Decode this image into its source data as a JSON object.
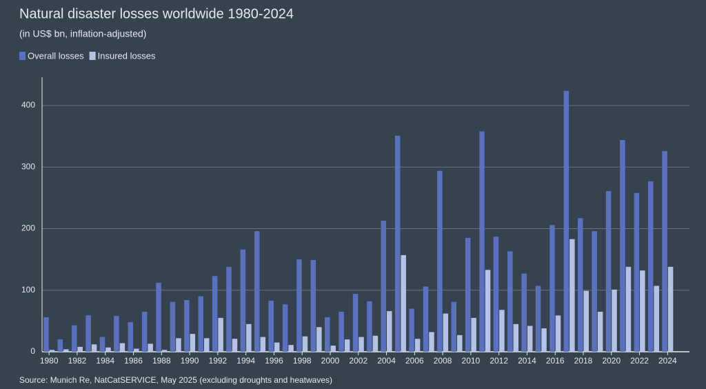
{
  "chart_data": {
    "type": "bar",
    "title": "Natural disaster losses worldwide 1980-2024",
    "subtitle": "(in US$ bn, inflation-adjusted)",
    "source": "Source: Munich Re, NatCatSERVICE, May 2025 (excluding droughts and heatwaves)",
    "categories": [
      "1980",
      null,
      "1982",
      null,
      "1984",
      null,
      "1986",
      null,
      "1988",
      null,
      "1990",
      null,
      "1992",
      null,
      "1994",
      null,
      "1996",
      null,
      "1998",
      null,
      "2000",
      null,
      "2002",
      null,
      "2004",
      null,
      "2006",
      null,
      "2008",
      null,
      "2010",
      null,
      "2012",
      null,
      "2014",
      null,
      "2016",
      null,
      "2018",
      null,
      "2020",
      null,
      "2022",
      null,
      "2024"
    ],
    "series": [
      {
        "name": "Overall losses",
        "color": "#5a71bf",
        "values": [
          56,
          20,
          43,
          59,
          24,
          58,
          48,
          65,
          112,
          81,
          84,
          90,
          123,
          138,
          166,
          196,
          83,
          77,
          150,
          149,
          56,
          65,
          94,
          82,
          213,
          351,
          70,
          106,
          294,
          81,
          185,
          358,
          187,
          163,
          127,
          107,
          206,
          424,
          217,
          196,
          261,
          344,
          258,
          277,
          326
        ]
      },
      {
        "name": "Insured losses",
        "color": "#b4c2e6",
        "values": [
          3,
          4,
          8,
          12,
          7,
          14,
          5,
          13,
          3,
          22,
          29,
          22,
          55,
          21,
          45,
          24,
          15,
          11,
          25,
          40,
          10,
          20,
          24,
          26,
          66,
          157,
          21,
          32,
          62,
          27,
          55,
          133,
          68,
          45,
          42,
          38,
          59,
          183,
          99,
          65,
          101,
          138,
          132,
          107,
          138
        ]
      }
    ],
    "ylim": [
      0,
      446
    ],
    "yticks": [
      0,
      100,
      200,
      300,
      400
    ],
    "grid": true,
    "legend": "top-left"
  }
}
